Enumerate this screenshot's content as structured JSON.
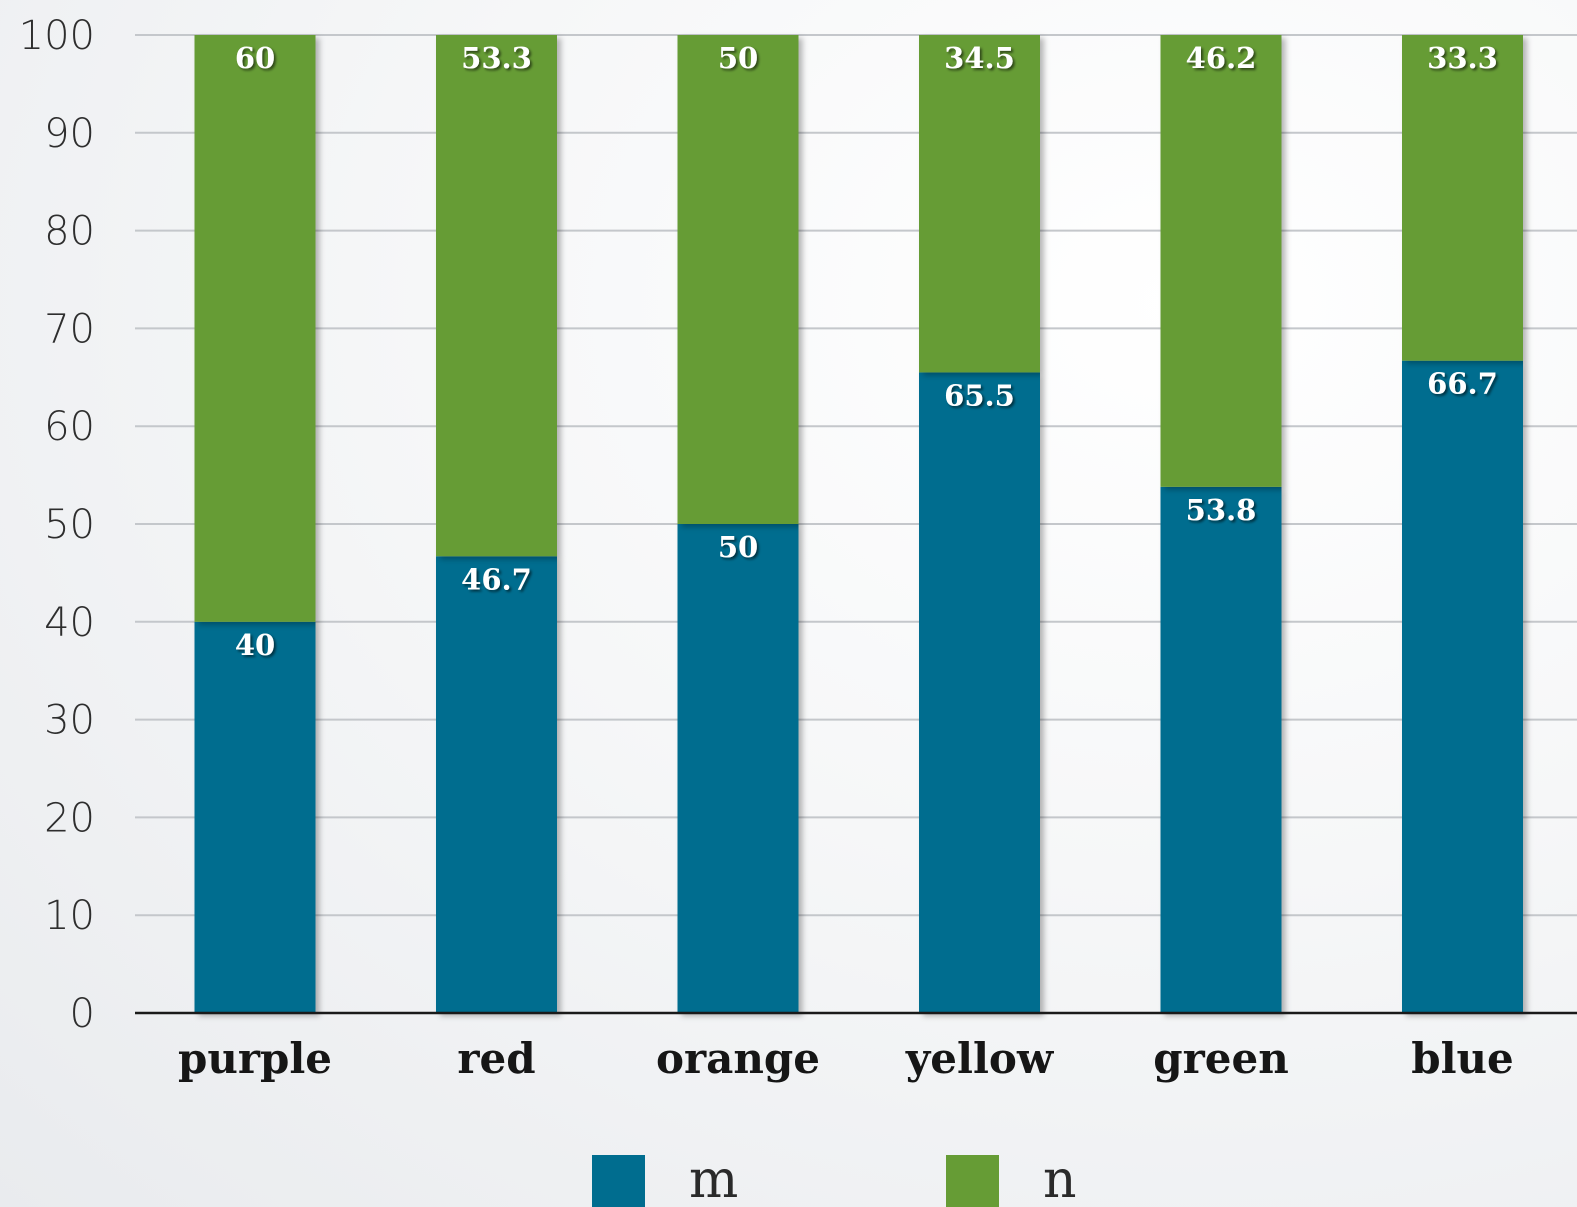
{
  "chart_data": {
    "type": "bar",
    "stacked": true,
    "categories": [
      "purple",
      "red",
      "orange",
      "yellow",
      "green",
      "blue"
    ],
    "series": [
      {
        "name": "m",
        "color": "#006d8f",
        "values": [
          40,
          46.7,
          50,
          65.5,
          53.8,
          66.7
        ],
        "labels": [
          "40",
          "46.7",
          "50",
          "65.5",
          "53.8",
          "66.7"
        ]
      },
      {
        "name": "n",
        "color": "#669c35",
        "values": [
          60,
          53.3,
          50,
          34.5,
          46.2,
          33.3
        ],
        "labels": [
          "60",
          "53.3",
          "50",
          "34.5",
          "46.2",
          "33.3"
        ]
      }
    ],
    "ylim": [
      0,
      100
    ],
    "yticks": [
      "0",
      "10",
      "20",
      "30",
      "40",
      "50",
      "60",
      "70",
      "80",
      "90",
      "100"
    ],
    "grid": true,
    "legend_position": "bottom",
    "title": "",
    "xlabel": "",
    "ylabel": ""
  }
}
